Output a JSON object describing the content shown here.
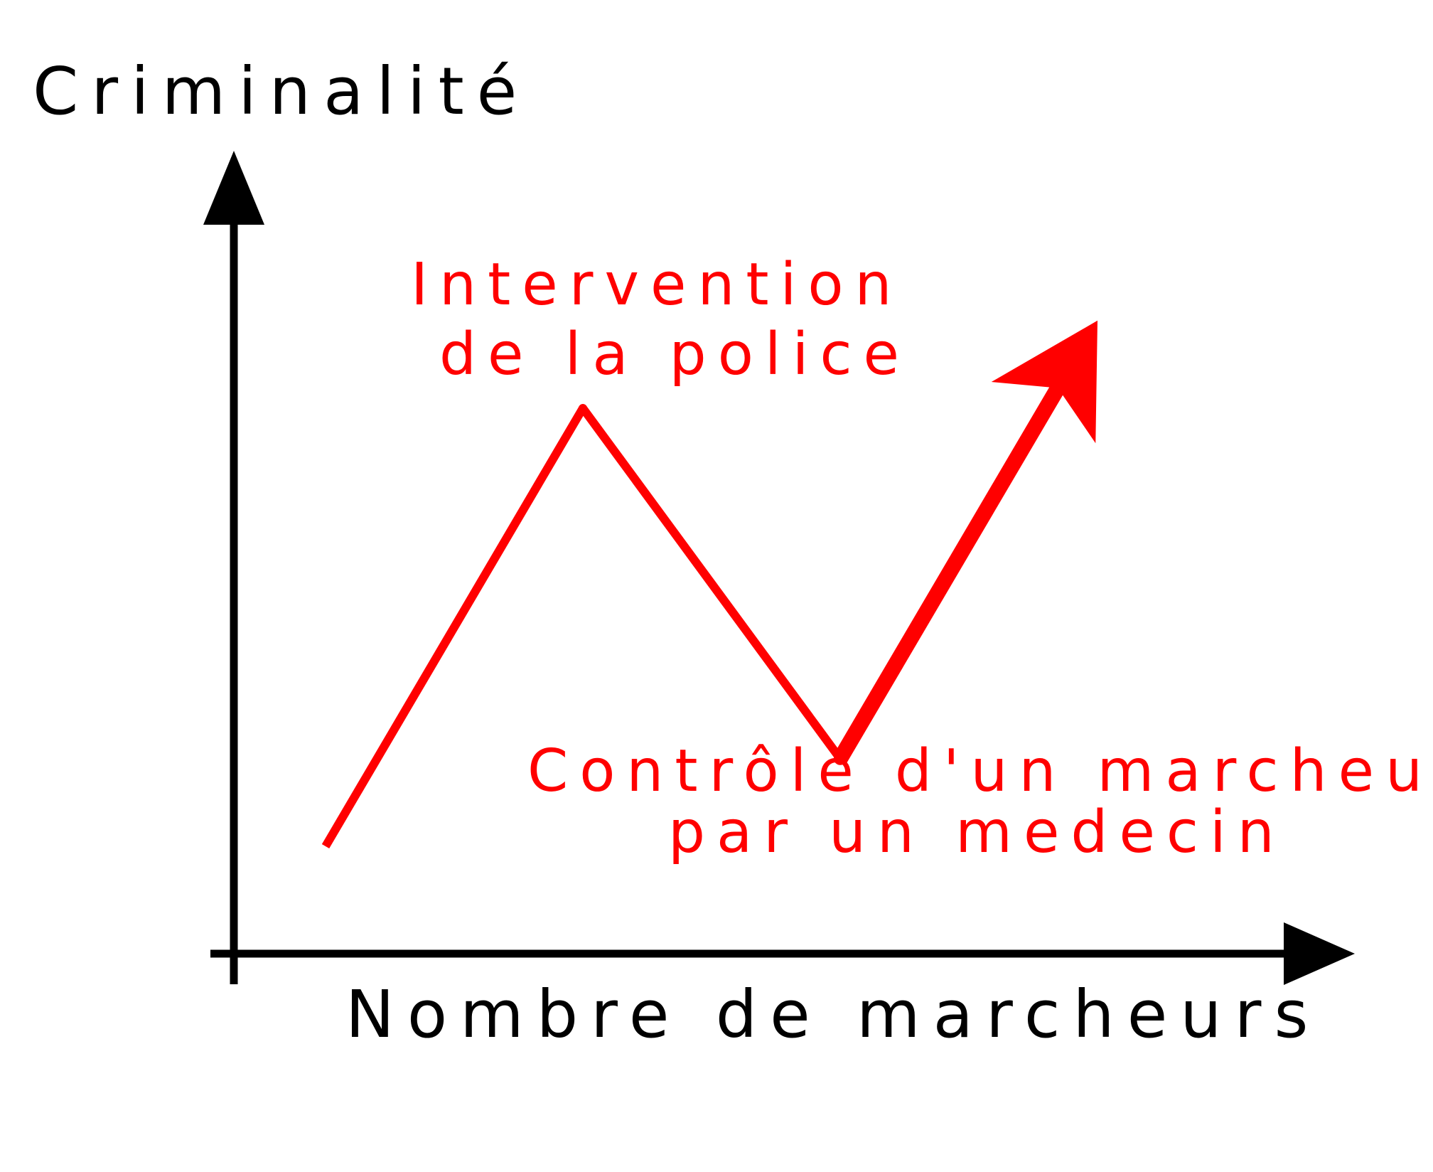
{
  "chart_data": {
    "type": "line",
    "ylabel": "Criminalité",
    "xlabel": "Nombre de marcheurs",
    "series": [
      {
        "color": "#ff0000",
        "points": [
          {
            "x": 1,
            "y": 1
          },
          {
            "x": 2,
            "y": 6
          },
          {
            "x": 3,
            "y": 2
          },
          {
            "x": 4,
            "y": 7
          }
        ]
      }
    ],
    "annotations": [
      {
        "lines": [
          "Intervention",
          "de la police"
        ],
        "color": "#ff0000"
      },
      {
        "lines": [
          "Contrôle d'un marcheur",
          "par un medecin"
        ],
        "color": "#ff0000"
      }
    ],
    "arrow_at_end": true,
    "grid": false,
    "axis_color": "#000000"
  }
}
